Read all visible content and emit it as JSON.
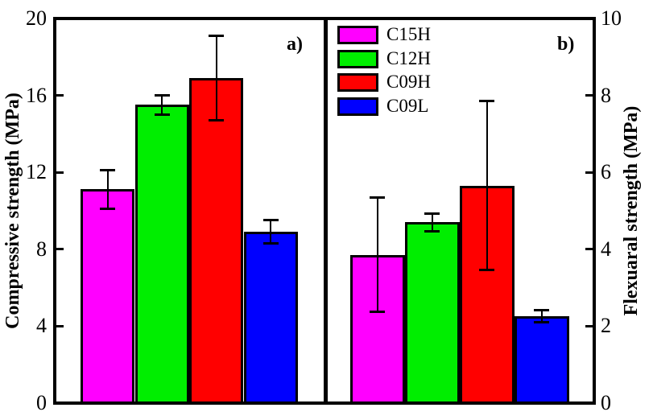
{
  "figure": {
    "background": "#ffffff",
    "frame_color": "#000000"
  },
  "chart_data": [
    {
      "type": "bar",
      "panel": "a)",
      "ylabel": "Compressive strength (MPa)",
      "ylabel_side": "left",
      "ylim": [
        0,
        20
      ],
      "yticks": [
        0,
        4,
        8,
        12,
        16,
        20
      ],
      "categories": [
        "C15H",
        "C12H",
        "C09H",
        "C09L"
      ],
      "values": [
        11.1,
        15.5,
        16.9,
        8.9
      ],
      "errors": [
        1.0,
        0.5,
        2.2,
        0.6
      ],
      "colors": [
        "#ff00ff",
        "#00ee00",
        "#ff0000",
        "#0000ff"
      ],
      "grid": false,
      "xticklabels": []
    },
    {
      "type": "bar",
      "panel": "b)",
      "ylabel": "Flexuaral strength (MPa)",
      "ylabel_side": "right",
      "ylim": [
        0,
        10
      ],
      "yticks": [
        0,
        2,
        4,
        6,
        8,
        10
      ],
      "categories": [
        "C15H",
        "C12H",
        "C09H",
        "C09L"
      ],
      "values": [
        3.85,
        4.7,
        5.65,
        2.25
      ],
      "errors": [
        1.48,
        0.23,
        2.2,
        0.16
      ],
      "colors": [
        "#ff00ff",
        "#00ee00",
        "#ff0000",
        "#0000ff"
      ],
      "grid": false,
      "xticklabels": []
    }
  ],
  "legend": {
    "position": "top, right of panel divider",
    "items": [
      {
        "label": "C15H",
        "color": "#ff00ff"
      },
      {
        "label": "C12H",
        "color": "#00ee00"
      },
      {
        "label": "C09H",
        "color": "#ff0000"
      },
      {
        "label": "C09L",
        "color": "#0000ff"
      }
    ]
  }
}
